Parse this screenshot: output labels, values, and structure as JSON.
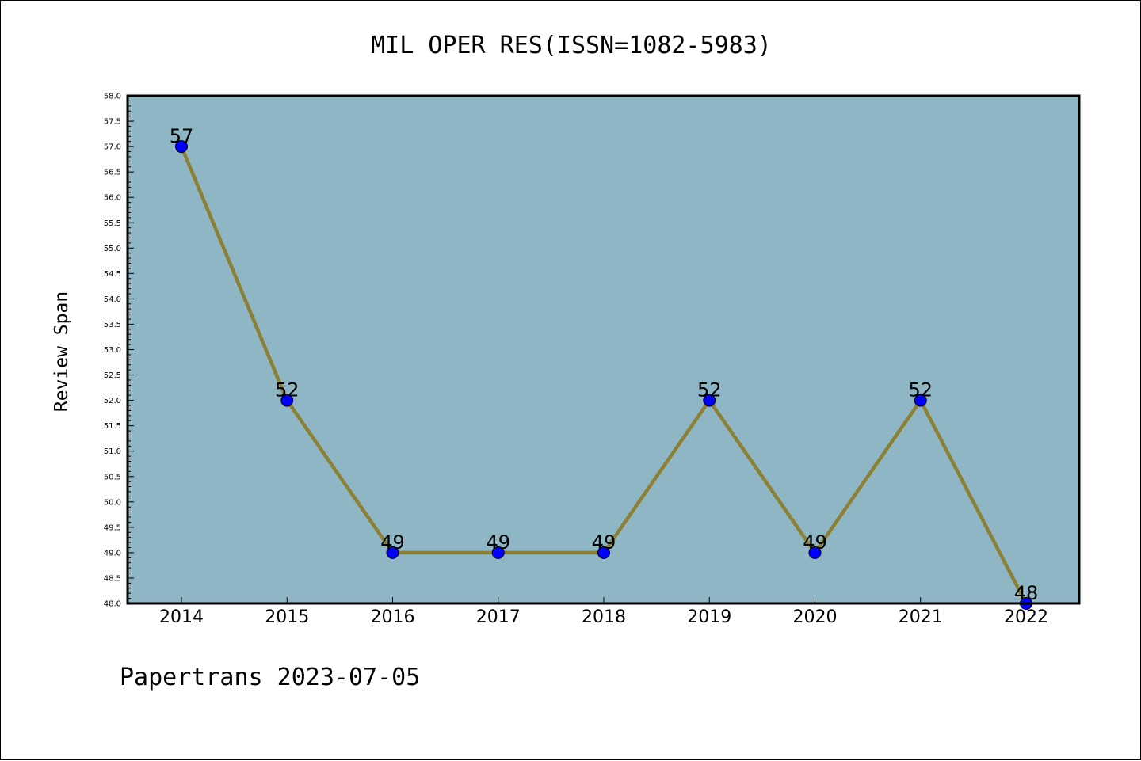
{
  "chart_data": {
    "type": "line",
    "title": "MIL OPER RES(ISSN=1082-5983)",
    "xlabel": "",
    "ylabel": "Review Span",
    "footer": "Papertrans 2023-07-05",
    "categories": [
      "2014",
      "2015",
      "2016",
      "2017",
      "2018",
      "2019",
      "2020",
      "2021",
      "2022"
    ],
    "series": [
      {
        "values": [
          57,
          52,
          49,
          49,
          49,
          52,
          49,
          52,
          48
        ]
      }
    ],
    "data_labels": [
      "57",
      "52",
      "49",
      "49",
      "49",
      "52",
      "49",
      "52",
      "48"
    ],
    "ylim": [
      48.0,
      58.0
    ],
    "yticks": [
      "48.0",
      "48.5",
      "49.0",
      "49.5",
      "50.0",
      "50.5",
      "51.0",
      "51.5",
      "52.0",
      "52.5",
      "53.0",
      "53.5",
      "54.0",
      "54.5",
      "55.0",
      "55.5",
      "56.0",
      "56.5",
      "57.0",
      "57.5",
      "58.0"
    ],
    "grid": false,
    "colors": {
      "plot_background": "#8fb6c5",
      "line": "#8c8035",
      "marker": "#0000ff"
    }
  }
}
